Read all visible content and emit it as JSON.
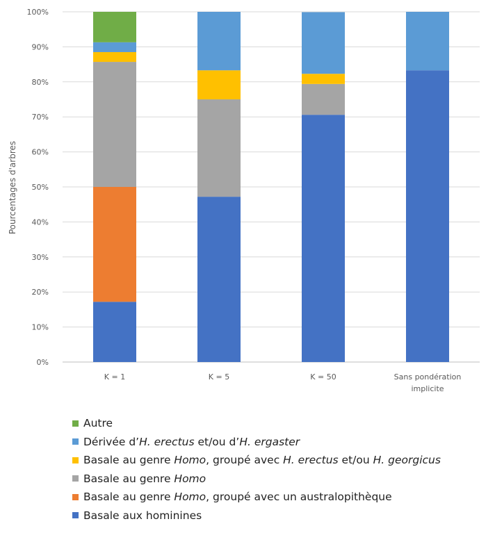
{
  "chart_data": {
    "type": "bar",
    "stacked": true,
    "ylabel": "Pourcentages d'arbres",
    "xlabel": "",
    "ylim": [
      0,
      100
    ],
    "y_ticks": [
      "0%",
      "10%",
      "20%",
      "30%",
      "40%",
      "50%",
      "60%",
      "70%",
      "80%",
      "90%",
      "100%"
    ],
    "grid": true,
    "legend_position": "bottom",
    "categories": [
      "K = 1",
      "K = 5",
      "K = 50",
      "Sans pondération implicite"
    ],
    "category_lines": [
      [
        "K = 1"
      ],
      [
        "K = 5"
      ],
      [
        "K = 50"
      ],
      [
        "Sans pondération",
        "implicite"
      ]
    ],
    "series": [
      {
        "name": "Basale aux hominines",
        "name_parts": [
          {
            "t": "Basale aux hominines"
          }
        ],
        "color": "#4472C4",
        "values": [
          17.2,
          47.2,
          70.6,
          83.3
        ]
      },
      {
        "name": "Basale au genre Homo, groupé avec un australopithèque",
        "name_parts": [
          {
            "t": "Basale au genre "
          },
          {
            "t": "Homo",
            "i": true
          },
          {
            "t": ", groupé avec un australopithèque"
          }
        ],
        "color": "#ED7D31",
        "values": [
          32.8,
          0,
          0,
          0
        ]
      },
      {
        "name": "Basale au genre Homo",
        "name_parts": [
          {
            "t": "Basale au genre "
          },
          {
            "t": "Homo",
            "i": true
          }
        ],
        "color": "#A5A5A5",
        "values": [
          35.7,
          27.8,
          8.8,
          0
        ]
      },
      {
        "name": "Basale au genre Homo, groupé avec H. erectus et/ou H. georgicus",
        "name_parts": [
          {
            "t": "Basale au genre "
          },
          {
            "t": "Homo",
            "i": true
          },
          {
            "t": ", groupé avec "
          },
          {
            "t": "H. erectus",
            "i": true
          },
          {
            "t": " et/ou "
          },
          {
            "t": "H. georgicus",
            "i": true
          }
        ],
        "color": "#FFC000",
        "values": [
          2.8,
          8.3,
          2.9,
          0
        ]
      },
      {
        "name": "Dérivée d'H. erectus et/ou d'H. ergaster",
        "name_parts": [
          {
            "t": "Dérivée d’"
          },
          {
            "t": "H. erectus",
            "i": true
          },
          {
            "t": " et/ou d’"
          },
          {
            "t": "H. ergaster",
            "i": true
          }
        ],
        "color": "#5B9BD5",
        "values": [
          2.8,
          16.7,
          17.6,
          16.7
        ]
      },
      {
        "name": "Autre",
        "name_parts": [
          {
            "t": "Autre"
          }
        ],
        "color": "#70AD47",
        "values": [
          8.7,
          0,
          0,
          0
        ]
      }
    ]
  }
}
